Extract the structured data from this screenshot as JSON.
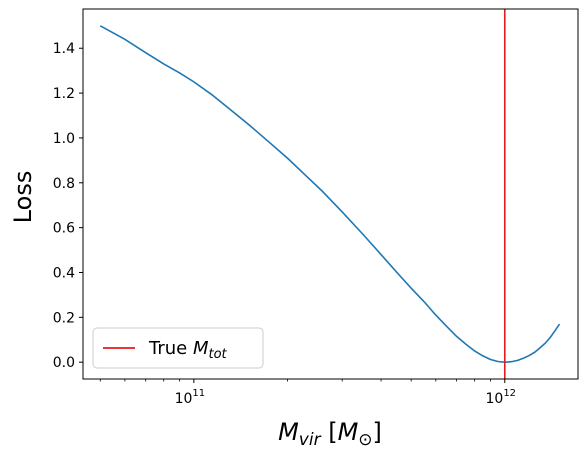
{
  "chart_data": {
    "type": "line",
    "title": "",
    "xlabel": "M_vir [M_⊙]",
    "ylabel": "Loss",
    "xscale": "log",
    "xlim": [
      44000000000.0,
      1720000000000.0
    ],
    "ylim": [
      -0.075,
      1.575
    ],
    "xticks": [
      {
        "value": 100000000000.0,
        "base": "10",
        "exp": "11"
      },
      {
        "value": 1000000000000.0,
        "base": "10",
        "exp": "12"
      }
    ],
    "yticks": [
      {
        "value": 0.0,
        "label": "0.0"
      },
      {
        "value": 0.2,
        "label": "0.2"
      },
      {
        "value": 0.4,
        "label": "0.4"
      },
      {
        "value": 0.6,
        "label": "0.6"
      },
      {
        "value": 0.8,
        "label": "0.8"
      },
      {
        "value": 1.0,
        "label": "1.0"
      },
      {
        "value": 1.2,
        "label": "1.2"
      },
      {
        "value": 1.4,
        "label": "1.4"
      }
    ],
    "grid": false,
    "legend": {
      "placement": "lower-left",
      "entries": [
        {
          "text_plain": "True ",
          "text_math": "M",
          "text_sub": "tot",
          "color": "#e41a1c"
        }
      ]
    },
    "series": [
      {
        "color": "#1f77b4",
        "x": [
          50000000000.0,
          60000000000.0,
          70000000000.0,
          80000000000.0,
          90000000000.0,
          100000000000.0,
          115000000000.0,
          130000000000.0,
          150000000000.0,
          175000000000.0,
          200000000000.0,
          230000000000.0,
          260000000000.0,
          300000000000.0,
          350000000000.0,
          400000000000.0,
          450000000000.0,
          500000000000.0,
          550000000000.0,
          600000000000.0,
          650000000000.0,
          700000000000.0,
          750000000000.0,
          800000000000.0,
          850000000000.0,
          900000000000.0,
          950000000000.0,
          1000000000000.0,
          1050000000000.0,
          1100000000000.0,
          1150000000000.0,
          1200000000000.0,
          1250000000000.0,
          1300000000000.0,
          1350000000000.0,
          1400000000000.0,
          1450000000000.0,
          1500000000000.0
        ],
        "y": [
          1.5,
          1.44,
          1.38,
          1.33,
          1.29,
          1.25,
          1.19,
          1.13,
          1.06,
          0.98,
          0.91,
          0.83,
          0.76,
          0.67,
          0.57,
          0.48,
          0.4,
          0.33,
          0.27,
          0.21,
          0.16,
          0.115,
          0.08,
          0.05,
          0.028,
          0.012,
          0.003,
          0.0,
          0.002,
          0.008,
          0.018,
          0.03,
          0.045,
          0.065,
          0.085,
          0.11,
          0.14,
          0.17
        ]
      }
    ],
    "reference_lines": [
      {
        "orientation": "vertical",
        "x": 1000000000000.0,
        "color": "#e41a1c"
      }
    ]
  }
}
